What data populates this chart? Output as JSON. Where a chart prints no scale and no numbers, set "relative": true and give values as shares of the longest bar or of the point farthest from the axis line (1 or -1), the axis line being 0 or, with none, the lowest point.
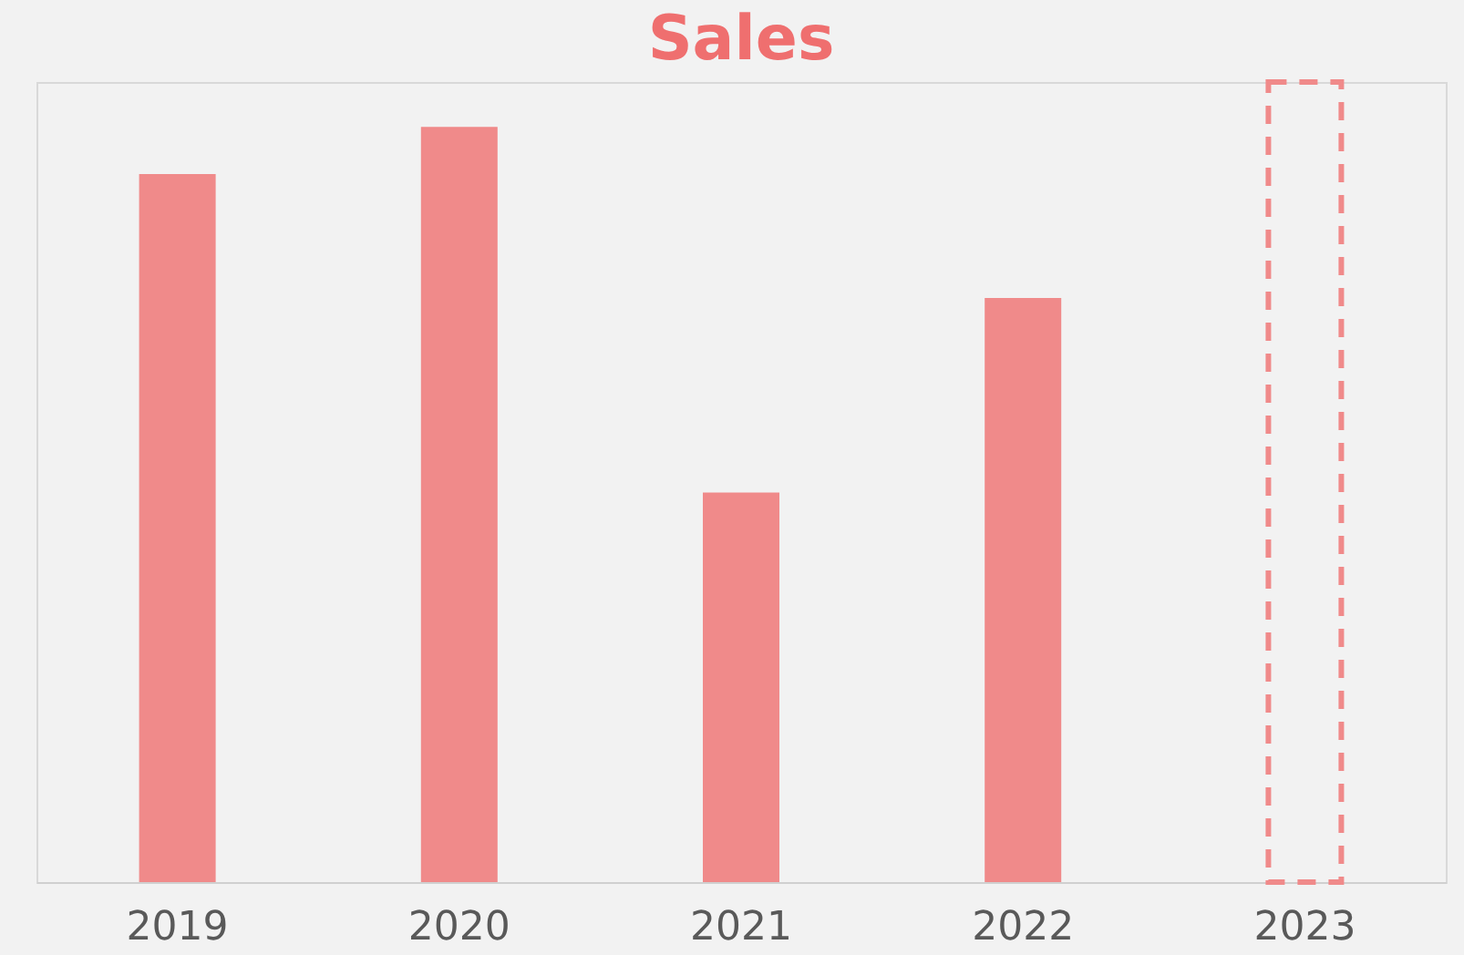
{
  "chart_data": {
    "type": "bar",
    "title": "Sales",
    "relative": true,
    "categories": [
      "2019",
      "2020",
      "2021",
      "2022",
      "2023"
    ],
    "series": [
      {
        "color": "#f08a8a",
        "values": [
          0.885,
          0.944,
          0.487,
          0.73,
          null
        ]
      },
      {
        "color": "#f08a8a",
        "line_style": "dashed",
        "values": [
          null,
          null,
          null,
          null,
          1.0
        ]
      }
    ]
  }
}
